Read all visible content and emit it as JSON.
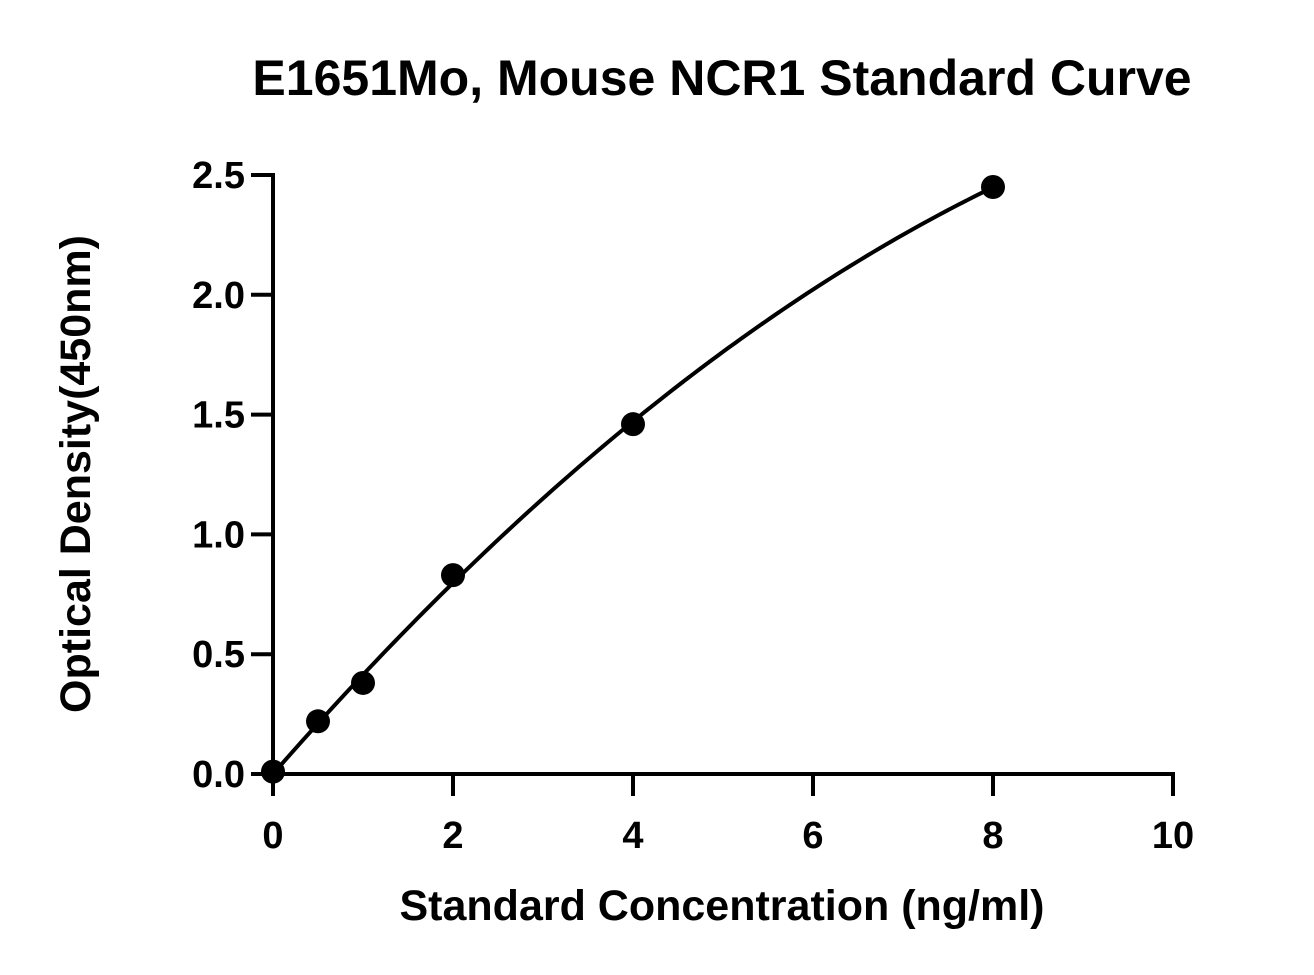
{
  "chart_data": {
    "type": "scatter",
    "title": "E1651Mo, Mouse NCR1 Standard Curve",
    "xlabel": "Standard Concentration (ng/ml)",
    "ylabel": "Optical Density(450nm)",
    "xlim": [
      0,
      10
    ],
    "ylim": [
      0,
      2.5
    ],
    "x_ticks": [
      0,
      2,
      4,
      6,
      8,
      10
    ],
    "y_ticks": [
      0,
      0.5,
      1.0,
      1.5,
      2.0,
      2.5
    ],
    "x_tick_labels": [
      "0",
      "2",
      "4",
      "6",
      "8",
      "10"
    ],
    "y_tick_labels": [
      "0.0",
      "0.5",
      "1.0",
      "1.5",
      "2.0",
      "2.5"
    ],
    "grid": false,
    "legend": "none",
    "series": [
      {
        "x": [
          0,
          0.5,
          1,
          2,
          4,
          8
        ],
        "y": [
          0.01,
          0.22,
          0.38,
          0.83,
          1.46,
          2.45
        ],
        "marker": "circle",
        "fit_curve": true,
        "color": "#000000"
      }
    ]
  }
}
